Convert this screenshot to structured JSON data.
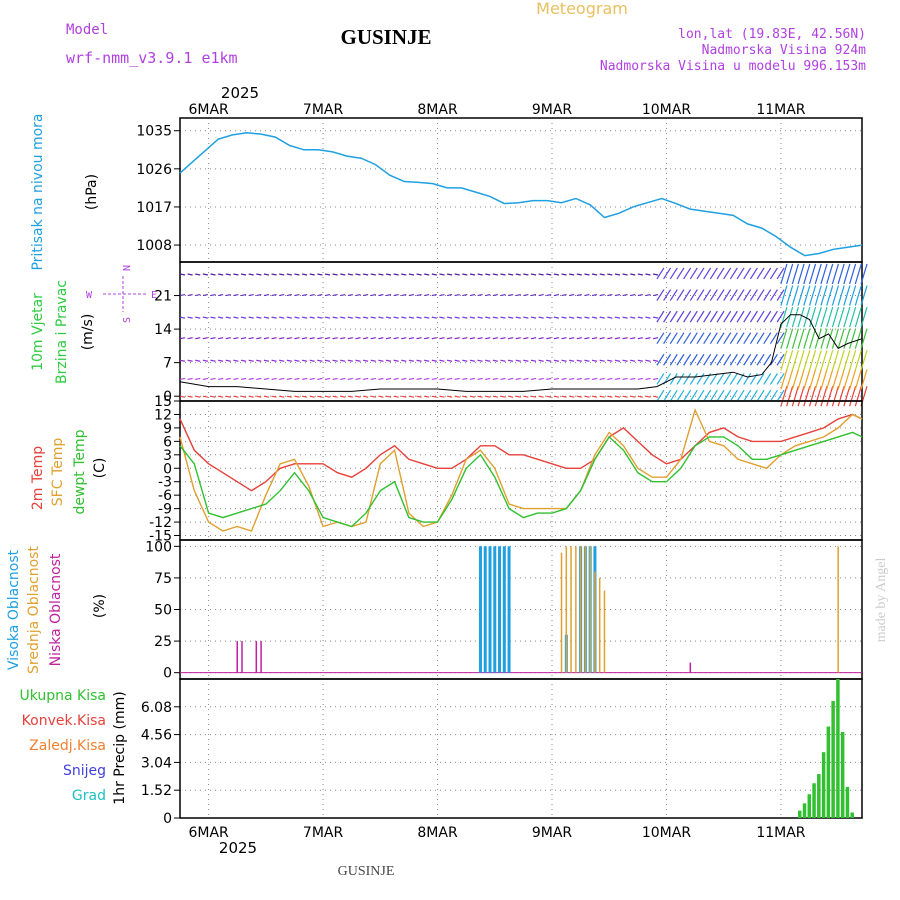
{
  "header": {
    "meteogram": "Meteogram",
    "station": "GUSINJE",
    "model_label": "Model",
    "model_name": "wrf-nmm_v3.9.1 e1km",
    "lonlat": "lon,lat (19.83E, 42.56N)",
    "altitude": "Nadmorska Visina 924m",
    "model_altitude": "Nadmorska Visina u modelu 996.153m",
    "credit": "made by Angel",
    "footer_station": "GUSINJE",
    "top_year": "2025",
    "bottom_year": "2025"
  },
  "colors": {
    "pressure": "#1fa0e0",
    "wind_label": "#2ecc40",
    "compass": "#b040e0",
    "temp2m": "#e8403a",
    "sfc": "#e0a030",
    "dewpt": "#30c030",
    "high_cloud": "#1fa0e0",
    "mid_cloud": "#e0a030",
    "low_cloud": "#c020a0",
    "total_precip": "#30c030",
    "conv_precip": "#e8403a",
    "frozen_precip": "#f08030",
    "snow": "#4040e0",
    "hail": "#20c0c0"
  },
  "chart_data": [
    {
      "type": "line",
      "panel": "pressure",
      "ylabel": [
        "Pritisak na nivou mora",
        "(hPa)"
      ],
      "x_labels": [
        "6MAR",
        "7MAR",
        "8MAR",
        "9MAR",
        "10MAR",
        "11MAR"
      ],
      "yticks": [
        1008,
        1017,
        1026,
        1035
      ],
      "ylim": [
        1004,
        1038
      ],
      "series": [
        {
          "x": [
            0,
            2,
            5,
            8,
            11,
            14,
            17,
            20,
            23,
            26,
            29,
            32,
            35,
            38,
            41,
            44,
            47,
            50,
            53,
            56,
            59,
            62,
            65,
            68,
            71,
            74,
            77,
            80,
            83,
            86,
            89,
            92,
            95,
            98,
            101,
            104,
            107,
            110,
            113,
            116,
            119,
            122,
            125,
            128,
            131,
            134,
            137,
            140,
            143
          ],
          "y": [
            1025,
            1027,
            1030,
            1033,
            1034,
            1034.5,
            1034.2,
            1033.5,
            1031.5,
            1030.5,
            1030.5,
            1030,
            1029,
            1028.5,
            1027,
            1024.5,
            1023,
            1022.8,
            1022.5,
            1021.5,
            1021.5,
            1020.5,
            1019.5,
            1017.8,
            1018,
            1018.5,
            1018.5,
            1018,
            1019,
            1017.5,
            1014.5,
            1015.5,
            1017,
            1018,
            1019,
            1017.8,
            1016.5,
            1016,
            1015.5,
            1015,
            1013,
            1012,
            1010,
            1007.5,
            1005.5,
            1006,
            1007,
            1007.5,
            1008
          ]
        }
      ]
    },
    {
      "type": "line",
      "panel": "wind",
      "ylabel": [
        "10m Vjetar",
        "Brzina i Pravac",
        "(m/s)"
      ],
      "compass": {
        "n": "N",
        "s": "S",
        "e": "E",
        "w": "W"
      },
      "yticks": [
        0,
        7,
        14,
        21
      ],
      "ylim": [
        -1,
        28
      ],
      "series": [
        {
          "name": "wind speed",
          "x": [
            0,
            6,
            12,
            18,
            24,
            30,
            36,
            42,
            48,
            54,
            60,
            66,
            72,
            78,
            84,
            90,
            96,
            100,
            104,
            108,
            112,
            116,
            119,
            122,
            124,
            126,
            128,
            130,
            132,
            134,
            136,
            138,
            140,
            143
          ],
          "y": [
            3,
            2,
            2,
            1.5,
            1,
            1,
            1,
            1.5,
            1.5,
            1.5,
            1,
            1,
            1,
            1.5,
            1.5,
            1.5,
            1.5,
            2,
            4,
            4,
            4.5,
            5,
            4,
            4.5,
            7,
            15,
            17,
            17,
            16,
            12,
            13,
            10,
            11,
            12
          ]
        }
      ]
    },
    {
      "type": "line",
      "panel": "temperature",
      "ylabel": [
        "2m Temp",
        "SFC Temp",
        "dewpt Temp",
        "(C)"
      ],
      "yticks": [
        -15,
        -12,
        -9,
        -6,
        -3,
        0,
        3,
        6,
        9,
        12,
        15
      ],
      "ylim": [
        -16,
        15
      ],
      "series": [
        {
          "name": "2m Temp",
          "x": [
            0,
            3,
            6,
            9,
            12,
            15,
            18,
            21,
            24,
            27,
            30,
            33,
            36,
            39,
            42,
            45,
            48,
            51,
            54,
            57,
            60,
            63,
            66,
            69,
            72,
            75,
            78,
            81,
            84,
            87,
            90,
            93,
            96,
            99,
            102,
            105,
            108,
            111,
            114,
            117,
            120,
            123,
            126,
            129,
            132,
            135,
            138,
            141,
            143
          ],
          "y": [
            11,
            4,
            1,
            -1,
            -3,
            -5,
            -3,
            0,
            1,
            1,
            1,
            -1,
            -2,
            0,
            3,
            5,
            2,
            1,
            0,
            0,
            2,
            5,
            5,
            3,
            3,
            2,
            1,
            0,
            0,
            2,
            7,
            9,
            6,
            3,
            1,
            2,
            5,
            8,
            9,
            7,
            6,
            6,
            6,
            7,
            8,
            9,
            11,
            12,
            11
          ]
        },
        {
          "name": "SFC Temp",
          "x": [
            0,
            3,
            6,
            9,
            12,
            15,
            18,
            21,
            24,
            27,
            30,
            33,
            36,
            39,
            42,
            45,
            48,
            51,
            54,
            57,
            60,
            63,
            66,
            69,
            72,
            75,
            78,
            81,
            84,
            87,
            90,
            93,
            96,
            99,
            102,
            105,
            108,
            111,
            114,
            117,
            120,
            123,
            126,
            129,
            132,
            135,
            138,
            141,
            143
          ],
          "y": [
            7,
            -5,
            -12,
            -14,
            -13,
            -14,
            -6,
            1,
            2,
            -4,
            -13,
            -12,
            -13,
            -12,
            1,
            4,
            -10,
            -13,
            -12,
            -6,
            2,
            4,
            0,
            -8,
            -9,
            -9,
            -9,
            -9,
            -5,
            3,
            8,
            5,
            0,
            -2,
            -2,
            2,
            13,
            6,
            5,
            2,
            1,
            0,
            3,
            5,
            6,
            7,
            9,
            12,
            11
          ]
        },
        {
          "name": "dewpt Temp",
          "x": [
            0,
            3,
            6,
            9,
            12,
            15,
            18,
            21,
            24,
            27,
            30,
            33,
            36,
            39,
            42,
            45,
            48,
            51,
            54,
            57,
            60,
            63,
            66,
            69,
            72,
            75,
            78,
            81,
            84,
            87,
            90,
            93,
            96,
            99,
            102,
            105,
            108,
            111,
            114,
            117,
            120,
            123,
            126,
            129,
            132,
            135,
            138,
            141,
            143
          ],
          "y": [
            5,
            1,
            -10,
            -11,
            -10,
            -9,
            -8,
            -5,
            -1,
            -5,
            -11,
            -12,
            -13,
            -10,
            -5,
            -3,
            -11,
            -12,
            -12,
            -7,
            0,
            3,
            -2,
            -9,
            -11,
            -10,
            -10,
            -9,
            -5,
            2,
            7,
            4,
            -1,
            -3,
            -3,
            0,
            5,
            7,
            7,
            5,
            2,
            2,
            3,
            4,
            5,
            6,
            7,
            8,
            7
          ]
        }
      ]
    },
    {
      "type": "bar",
      "panel": "clouds",
      "ylabel": [
        "Visoka Oblacnost",
        "Srednja Oblacnost",
        "Niska Oblacnost",
        "(%)"
      ],
      "yticks": [
        0,
        25,
        50,
        75,
        100
      ],
      "ylim": [
        -5,
        105
      ],
      "series": [
        {
          "name": "Visoka Oblacnost",
          "x": [
            63,
            64,
            65,
            66,
            67,
            68,
            69,
            81,
            84,
            85,
            86,
            87
          ],
          "y": [
            100,
            100,
            100,
            100,
            100,
            100,
            100,
            30,
            100,
            100,
            100,
            100
          ]
        },
        {
          "name": "Srednja Oblacnost",
          "x": [
            80,
            81,
            82,
            83,
            84,
            85,
            86,
            87,
            88,
            89,
            138
          ],
          "y": [
            95,
            100,
            100,
            100,
            100,
            100,
            100,
            80,
            75,
            65,
            100
          ]
        },
        {
          "name": "Niska Oblacnost",
          "x": [
            12,
            13,
            16,
            17,
            107
          ],
          "y": [
            25,
            25,
            25,
            25,
            8
          ]
        }
      ]
    },
    {
      "type": "bar",
      "panel": "precip",
      "ylabel": [
        "1hr Precip (mm)"
      ],
      "legend": [
        "Ukupna Kisa",
        "Konvek.Kisa",
        "Zaledj.Kisa",
        "Snijeg",
        "Grad"
      ],
      "yticks": [
        0,
        1.52,
        3.04,
        4.56,
        6.08
      ],
      "ylim": [
        0,
        7.6
      ],
      "series": [
        {
          "name": "Ukupna Kisa",
          "x": [
            130,
            131,
            132,
            133,
            134,
            135,
            136,
            137,
            138,
            139,
            140,
            141
          ],
          "y": [
            0.4,
            0.8,
            1.3,
            1.9,
            2.4,
            3.6,
            5.0,
            6.4,
            7.6,
            4.7,
            1.7,
            0.3
          ]
        }
      ]
    }
  ]
}
